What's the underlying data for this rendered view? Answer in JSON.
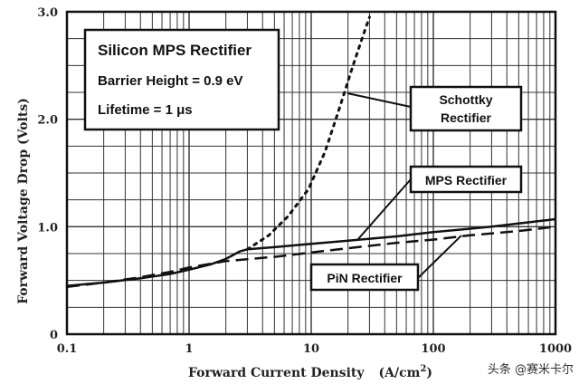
{
  "chart_data": {
    "type": "line",
    "x_scale": "log",
    "xlabel": "Forward Current Density",
    "xlabel_unit": "(A/cm",
    "xlabel_unit_sup": "2",
    "xlabel_unit_close": ")",
    "ylabel": "Forward Voltage Drop  (Volts)",
    "xlim": [
      0.1,
      1000
    ],
    "ylim": [
      0,
      3.0
    ],
    "x_ticks": [
      {
        "value": 0.1,
        "label": "0.1"
      },
      {
        "value": 1,
        "label": "1"
      },
      {
        "value": 10,
        "label": "10"
      },
      {
        "value": 100,
        "label": "100"
      },
      {
        "value": 1000,
        "label": "1000"
      }
    ],
    "y_ticks": [
      {
        "value": 0,
        "label": "0"
      },
      {
        "value": 1.0,
        "label": "1.0"
      },
      {
        "value": 2.0,
        "label": "2.0"
      },
      {
        "value": 3.0,
        "label": "3.0"
      }
    ],
    "grid": true,
    "info_box": {
      "title": "Silicon MPS Rectifier",
      "line1": "Barrier Height = 0.9 eV",
      "line2": "Lifetime = 1 μs"
    },
    "series": [
      {
        "name": "Schottky Rectifier",
        "style": "dotted",
        "x": [
          3.0,
          4.5,
          6.5,
          9.5,
          13,
          17,
          22,
          27,
          30
        ],
        "y": [
          0.79,
          0.92,
          1.1,
          1.35,
          1.7,
          2.1,
          2.5,
          2.8,
          2.95
        ]
      },
      {
        "name": "MPS Rectifier",
        "style": "solid",
        "x": [
          0.1,
          0.2,
          0.4,
          0.7,
          1.0,
          1.5,
          2.0,
          2.6,
          3.0,
          5,
          10,
          20,
          50,
          100,
          300,
          1000
        ],
        "y": [
          0.45,
          0.48,
          0.52,
          0.56,
          0.6,
          0.65,
          0.7,
          0.77,
          0.79,
          0.81,
          0.84,
          0.87,
          0.91,
          0.95,
          1.0,
          1.07
        ]
      },
      {
        "name": "PiN Rectifier",
        "style": "dashed",
        "x": [
          0.1,
          0.2,
          0.4,
          0.7,
          1.0,
          2.0,
          5,
          10,
          20,
          50,
          100,
          200,
          500,
          1000
        ],
        "y": [
          0.44,
          0.48,
          0.53,
          0.58,
          0.62,
          0.68,
          0.72,
          0.76,
          0.8,
          0.85,
          0.88,
          0.92,
          0.96,
          1.0
        ]
      }
    ],
    "callouts": [
      {
        "series": "Schottky Rectifier",
        "label_lines": [
          "Schottky",
          "Rectifier"
        ]
      },
      {
        "series": "MPS Rectifier",
        "label_lines": [
          "MPS Rectifier"
        ]
      },
      {
        "series": "PiN Rectifier",
        "label_lines": [
          "PiN Rectifier"
        ]
      }
    ]
  },
  "watermark": "头条 @赛米卡尔"
}
